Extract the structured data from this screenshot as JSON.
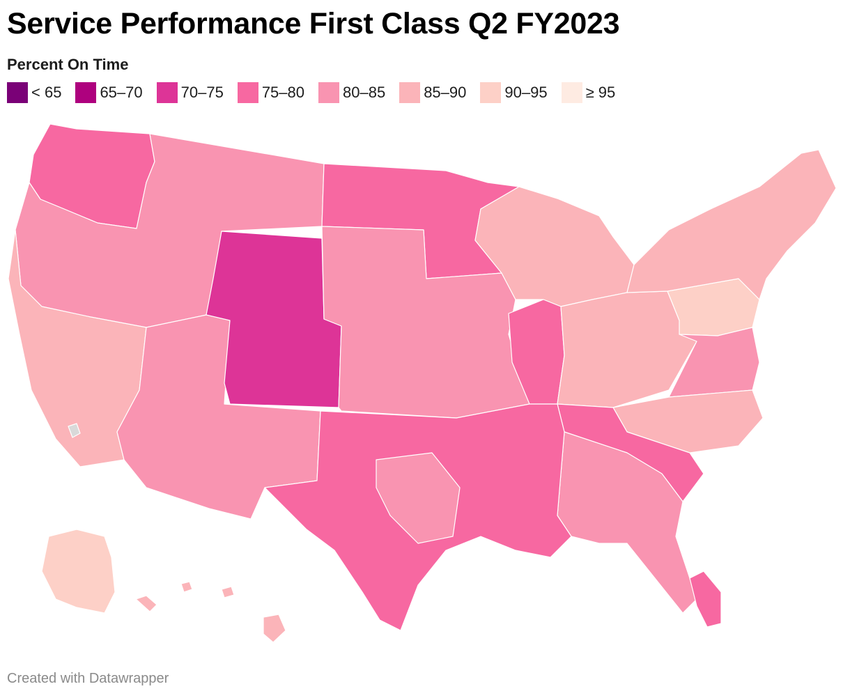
{
  "title": "Service Performance First Class Q2 FY2023",
  "legend": {
    "heading": "Percent On Time",
    "items": [
      {
        "label": "< 65",
        "color": "#7a0177"
      },
      {
        "label": "65–70",
        "color": "#ae017e"
      },
      {
        "label": "70–75",
        "color": "#dd3497"
      },
      {
        "label": "75–80",
        "color": "#f768a1"
      },
      {
        "label": "80–85",
        "color": "#f994b1"
      },
      {
        "label": "85–90",
        "color": "#fbb4b9"
      },
      {
        "label": "90–95",
        "color": "#fdd0c7"
      },
      {
        "label": "≥ 95",
        "color": "#feebe2"
      }
    ]
  },
  "no_data_color": "#d9d9d9",
  "map": {
    "regions": [
      {
        "region": "Northwest (Washington / N. Idaho)",
        "bin": "75–80"
      },
      {
        "region": "Oregon / Idaho / Montana / Dakotas west",
        "bin": "80–85"
      },
      {
        "region": "California coast / Nevada",
        "bin": "85–90"
      },
      {
        "region": "Southern California / Arizona / New Mexico",
        "bin": "80–85"
      },
      {
        "region": "Wyoming / Colorado",
        "bin": "70–75"
      },
      {
        "region": "Upper Midwest (N. Dakota / Minnesota)",
        "bin": "75–80"
      },
      {
        "region": "Central Plains (Nebraska / Kansas / Iowa / Missouri)",
        "bin": "80–85"
      },
      {
        "region": "Great Lakes (Wisconsin / Michigan)",
        "bin": "85–90"
      },
      {
        "region": "Illinois",
        "bin": "75–80"
      },
      {
        "region": "Ohio / Kentucky / West Virginia",
        "bin": "85–90"
      },
      {
        "region": "Pennsylvania",
        "bin": "90–95"
      },
      {
        "region": "New York / New England",
        "bin": "85–90"
      },
      {
        "region": "Virginia / Maryland",
        "bin": "80–85"
      },
      {
        "region": "North Carolina",
        "bin": "85–90"
      },
      {
        "region": "South Carolina / Tennessee strip",
        "bin": "75–80"
      },
      {
        "region": "Georgia / Alabama / Florida",
        "bin": "80–85"
      },
      {
        "region": "South Florida",
        "bin": "75–80"
      },
      {
        "region": "South Central (Texas / Oklahoma / Louisiana / Arkansas / Mississippi)",
        "bin": "75–80"
      },
      {
        "region": "North Texas / E. Oklahoma",
        "bin": "80–85"
      },
      {
        "region": "Alaska",
        "bin": "90–95"
      },
      {
        "region": "Hawaii",
        "bin": "85–90"
      }
    ]
  },
  "credit": "Created with Datawrapper"
}
